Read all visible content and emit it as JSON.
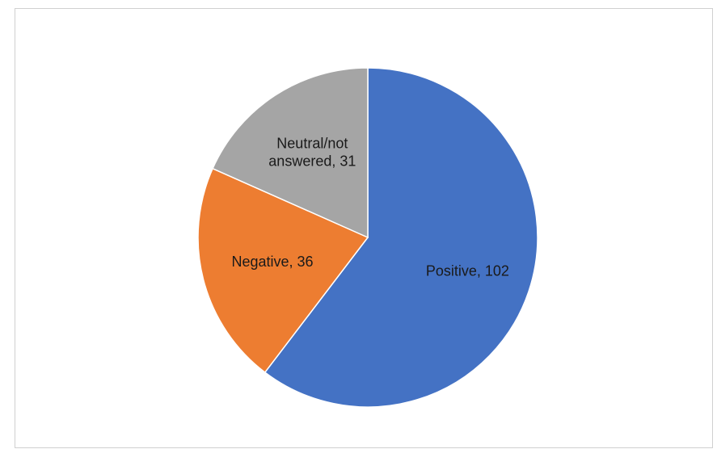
{
  "chart_data": {
    "type": "pie",
    "title": "",
    "slices": [
      {
        "category": "Positive",
        "value": 102,
        "color": "#4472C4",
        "label_lines": [
          "Positive, 102"
        ]
      },
      {
        "category": "Negative",
        "value": 36,
        "color": "#ED7D31",
        "label_lines": [
          "Negative, 36"
        ]
      },
      {
        "category": "Neutral/not answered",
        "value": 31,
        "color": "#A5A5A5",
        "label_lines": [
          "Neutral/not",
          "answered, 31"
        ]
      }
    ],
    "start_angle_deg": 0,
    "direction": "clockwise",
    "legend": "none"
  }
}
